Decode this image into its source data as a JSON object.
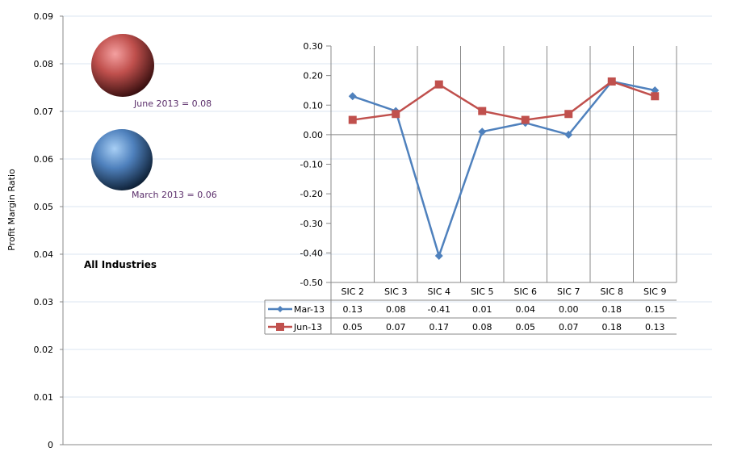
{
  "chart_data": [
    {
      "type": "scatter",
      "title": "All Industries",
      "ylabel": "Profit Margin Ratio",
      "ylim": [
        0,
        0.09
      ],
      "yticks": [
        "0",
        "0.01",
        "0.02",
        "0.03",
        "0.04",
        "0.05",
        "0.06",
        "0.07",
        "0.08",
        "0.09"
      ],
      "grid": true,
      "points": [
        {
          "name": "June 2013",
          "value": 0.08,
          "label": "June 2013 = 0.08",
          "color": "#c0504d"
        },
        {
          "name": "March 2013",
          "value": 0.06,
          "label": "March 2013 = 0.06",
          "color": "#4f81bd"
        }
      ]
    },
    {
      "type": "line",
      "categories": [
        "SIC 2",
        "SIC 3",
        "SIC 4",
        "SIC 5",
        "SIC 6",
        "SIC 7",
        "SIC 8",
        "SIC 9"
      ],
      "ylim": [
        -0.5,
        0.3
      ],
      "yticks": [
        "0.30",
        "0.20",
        "0.10",
        "0.00",
        "-0.10",
        "-0.20",
        "-0.30",
        "-0.40",
        "-0.50"
      ],
      "legend": "data-table",
      "series": [
        {
          "name": "Mar-13",
          "color": "#4f81bd",
          "marker": "diamond",
          "values": [
            0.13,
            0.08,
            -0.41,
            0.01,
            0.04,
            0.0,
            0.18,
            0.15
          ],
          "labels": [
            "0.13",
            "0.08",
            "-0.41",
            "0.01",
            "0.04",
            "0.00",
            "0.18",
            "0.15"
          ]
        },
        {
          "name": "Jun-13",
          "color": "#c0504d",
          "marker": "square",
          "values": [
            0.05,
            0.07,
            0.17,
            0.08,
            0.05,
            0.07,
            0.18,
            0.13
          ],
          "labels": [
            "0.05",
            "0.07",
            "0.17",
            "0.08",
            "0.05",
            "0.07",
            "0.18",
            "0.13"
          ]
        }
      ]
    }
  ]
}
